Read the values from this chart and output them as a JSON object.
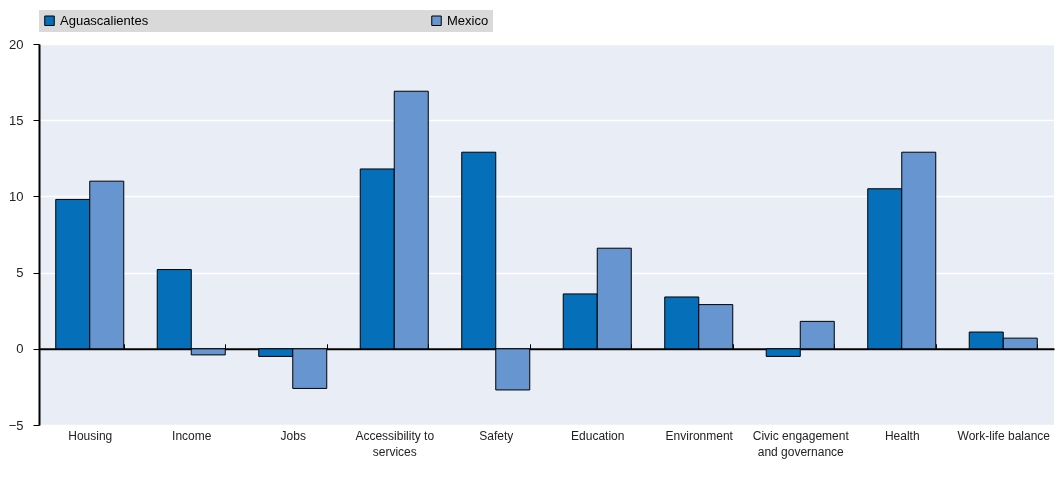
{
  "chart_data": {
    "type": "bar",
    "categories": [
      "Housing",
      "Income",
      "Jobs",
      "Accessibility to services",
      "Safety",
      "Education",
      "Environment",
      "Civic engagement and governance",
      "Health",
      "Work-life balance"
    ],
    "series": [
      {
        "name": "Aguascalientes",
        "color": "#0570b9",
        "values": [
          9.8,
          5.2,
          -0.5,
          11.8,
          12.9,
          3.6,
          3.4,
          -0.5,
          10.5,
          1.1
        ]
      },
      {
        "name": "Mexico",
        "color": "#6695cf",
        "values": [
          11.0,
          -0.4,
          -2.6,
          16.9,
          -2.7,
          6.6,
          2.9,
          1.8,
          12.9,
          0.7
        ]
      }
    ],
    "ylim": [
      -5,
      20
    ],
    "yticks": [
      -5,
      0,
      5,
      10,
      15,
      20
    ],
    "grid": "y",
    "legend": "top"
  }
}
